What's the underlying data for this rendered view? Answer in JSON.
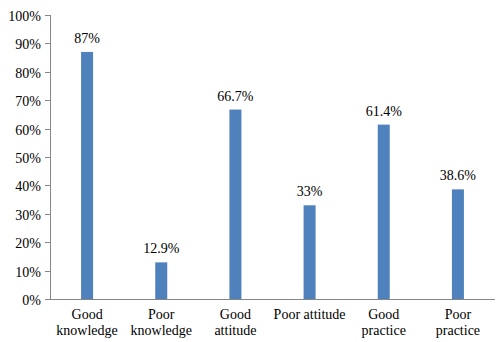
{
  "chart_data": {
    "type": "bar",
    "categories": [
      "Good knowledge",
      "Poor knowledge",
      "Good attitude",
      "Poor attitude",
      "Good practice",
      "Poor practice"
    ],
    "values": [
      87,
      12.9,
      66.7,
      33,
      61.4,
      38.6
    ],
    "value_labels": [
      "87%",
      "12.9%",
      "66.7%",
      "33%",
      "61.4%",
      "38.6%"
    ],
    "data_labels": true,
    "color": "#4f81bd",
    "ylim": [
      0,
      100
    ],
    "yticks": [
      {
        "value": 0,
        "label": "0%"
      },
      {
        "value": 10,
        "label": "10%"
      },
      {
        "value": 20,
        "label": "20%"
      },
      {
        "value": 30,
        "label": "30%"
      },
      {
        "value": 40,
        "label": "40%"
      },
      {
        "value": 50,
        "label": "50%"
      },
      {
        "value": 60,
        "label": "60%"
      },
      {
        "value": 70,
        "label": "70%"
      },
      {
        "value": 80,
        "label": "80%"
      },
      {
        "value": 90,
        "label": "90%"
      },
      {
        "value": 100,
        "label": "100%"
      }
    ],
    "grid": false
  }
}
